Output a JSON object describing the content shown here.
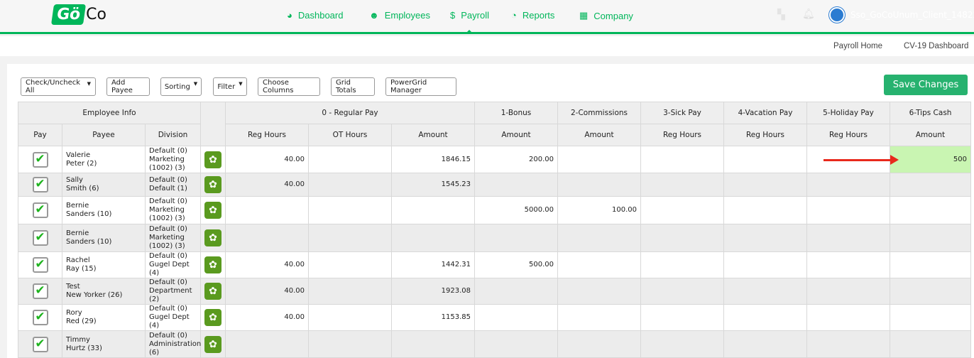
{
  "brand": {
    "logo_text_1": "Gö",
    "logo_text_2": "Co",
    "accent": "#00b65a"
  },
  "nav": [
    {
      "label": "Dashboard",
      "icon": "gauge-icon"
    },
    {
      "label": "Employees",
      "icon": "users-icon"
    },
    {
      "label": "Payroll",
      "icon": "dollar-icon"
    },
    {
      "label": "Reports",
      "icon": "pie-chart-icon"
    },
    {
      "label": "Company",
      "icon": "building-icon"
    }
  ],
  "user": {
    "name": "Sso_GoCoUnum_Client_148224"
  },
  "subnav": [
    "Payroll Home",
    "CV-19 Dashboard"
  ],
  "toolbar": {
    "check_all": "Check/Uncheck All",
    "add_payee": "Add Payee",
    "sorting": "Sorting",
    "filter": "Filter",
    "choose_columns": "Choose Columns",
    "grid_totals": "Grid Totals",
    "powergrid": "PowerGrid Manager",
    "save": "Save Changes"
  },
  "grid": {
    "groups": [
      "Employee Info",
      "0 - Regular Pay",
      "1-Bonus",
      "2-Commissions",
      "3-Sick Pay",
      "4-Vacation Pay",
      "5-Holiday Pay",
      "6-Tips Cash"
    ],
    "columns": [
      "Pay",
      "Payee",
      "Division",
      "Reg Hours",
      "OT Hours",
      "Amount",
      "Amount",
      "Amount",
      "Reg Hours",
      "Reg Hours",
      "Reg Hours",
      "Amount"
    ],
    "rows": [
      {
        "payee": [
          "Valerie",
          "Peter (2)"
        ],
        "division": [
          "Default (0)",
          "Marketing",
          "(1002) (3)"
        ],
        "vals": [
          "40.00",
          "",
          "1846.15",
          "200.00",
          "",
          "",
          "",
          "",
          "500"
        ]
      },
      {
        "payee": [
          "Sally",
          "Smith (6)"
        ],
        "division": [
          "Default (0)",
          "Default (1)"
        ],
        "vals": [
          "40.00",
          "",
          "1545.23",
          "",
          "",
          "",
          "",
          "",
          ""
        ]
      },
      {
        "payee": [
          "Bernie",
          "Sanders (10)"
        ],
        "division": [
          "Default (0)",
          "Marketing",
          "(1002) (3)"
        ],
        "vals": [
          "",
          "",
          "",
          "5000.00",
          "100.00",
          "",
          "",
          "",
          ""
        ]
      },
      {
        "payee": [
          "Bernie",
          "Sanders (10)"
        ],
        "division": [
          "Default (0)",
          "Marketing",
          "(1002) (3)"
        ],
        "vals": [
          "",
          "",
          "",
          "",
          "",
          "",
          "",
          "",
          ""
        ]
      },
      {
        "payee": [
          "Rachel",
          "Ray (15)"
        ],
        "division": [
          "Default (0)",
          "Gugel Dept (4)"
        ],
        "vals": [
          "40.00",
          "",
          "1442.31",
          "500.00",
          "",
          "",
          "",
          "",
          ""
        ]
      },
      {
        "payee": [
          "Test",
          "New Yorker (26)"
        ],
        "division": [
          "Default (0)",
          "Department (2)"
        ],
        "vals": [
          "40.00",
          "",
          "1923.08",
          "",
          "",
          "",
          "",
          "",
          ""
        ]
      },
      {
        "payee": [
          "Rory",
          "Red (29)"
        ],
        "division": [
          "Default (0)",
          "Gugel Dept (4)"
        ],
        "vals": [
          "40.00",
          "",
          "1153.85",
          "",
          "",
          "",
          "",
          "",
          ""
        ]
      },
      {
        "payee": [
          "Timmy",
          "Hurtz (33)"
        ],
        "division": [
          "Default (0)",
          "Administration",
          "(6)"
        ],
        "vals": [
          "",
          "",
          "",
          "",
          "",
          "",
          "",
          "",
          ""
        ]
      }
    ]
  }
}
